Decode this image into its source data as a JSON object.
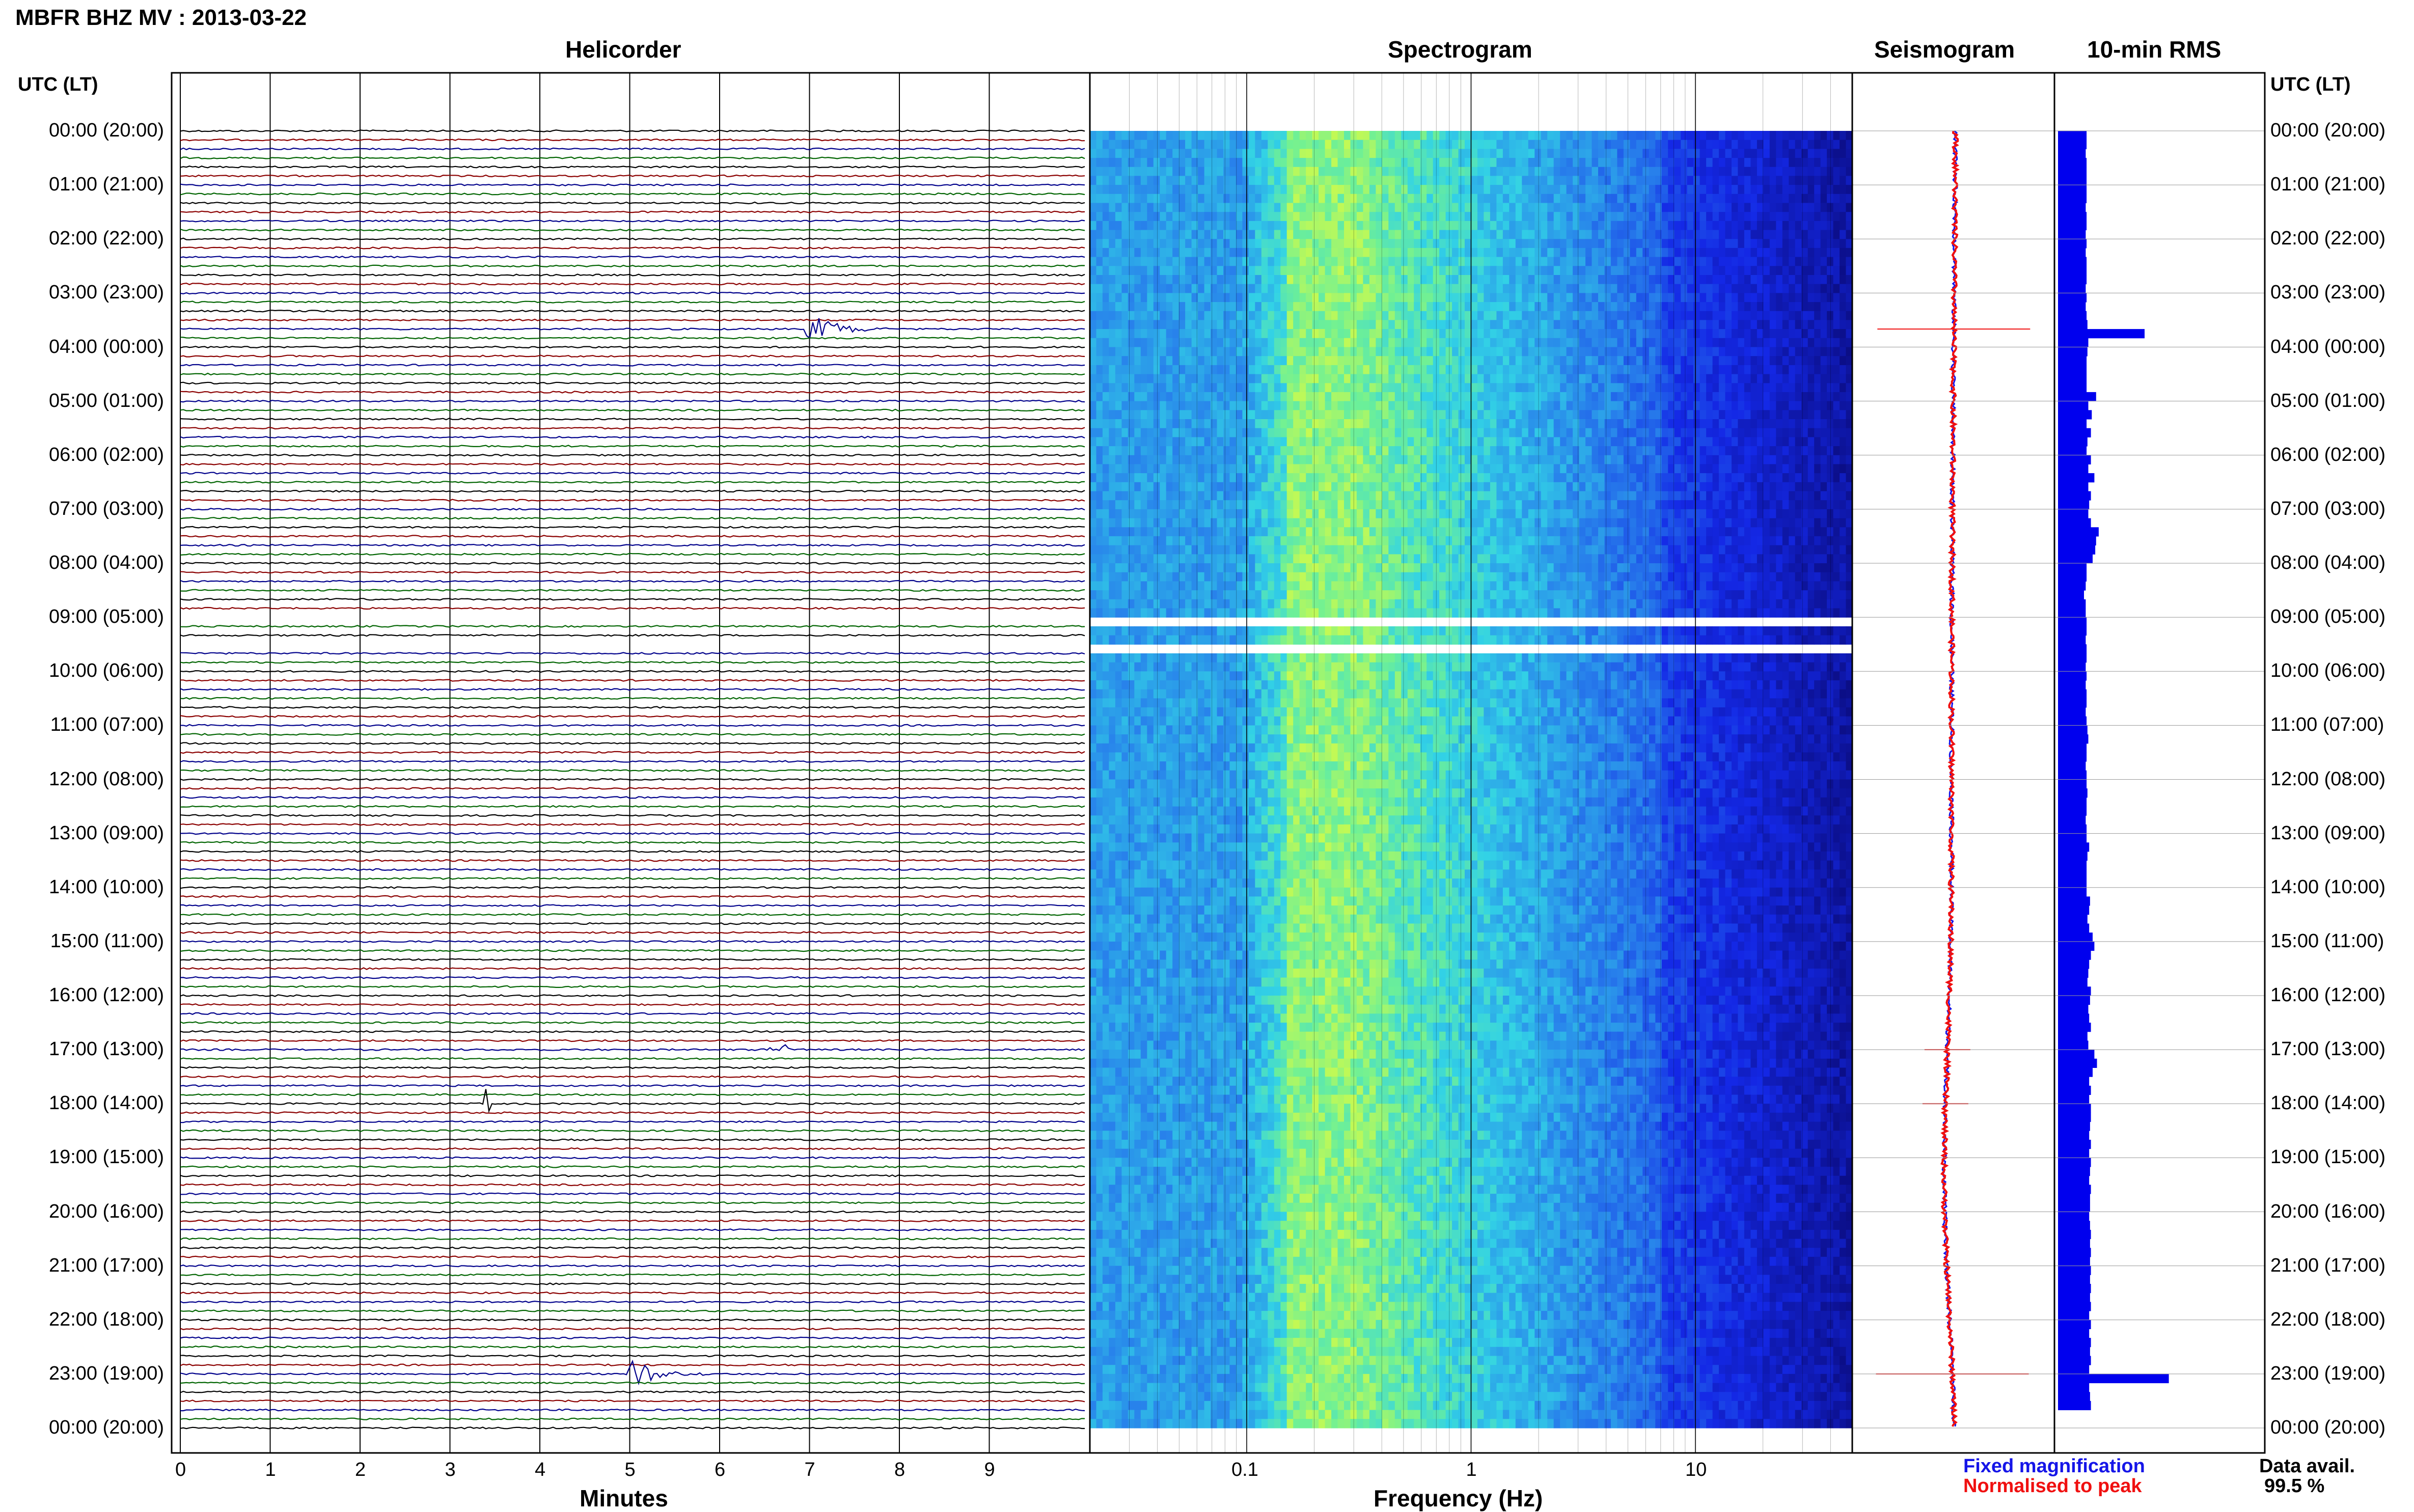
{
  "header": {
    "title": "MBFR BHZ MV : 2013-03-22",
    "panel_titles": [
      "Helicorder",
      "Spectrogram",
      "Seismogram",
      "10-min RMS"
    ],
    "left_axis_title": "UTC (LT)",
    "right_axis_title": "UTC (LT)"
  },
  "footer": {
    "x_title_helicorder": "Minutes",
    "x_title_spectrogram": "Frequency (Hz)",
    "legend": [
      {
        "label": "Fixed magnification",
        "color": "#1515e8"
      },
      {
        "label": "Normalised to peak",
        "color": "#f01010"
      }
    ],
    "data_avail_label": "Data avail.",
    "data_avail_value": "99.5 %"
  },
  "colors": {
    "trace_black": "#000000",
    "trace_red": "#8b0000",
    "trace_blue": "#00008b",
    "trace_green": "#006400",
    "rms_bar": "#0000ee",
    "seis_fixed": "#1515e8",
    "seis_norm": "#f01010"
  },
  "chart_data": [
    {
      "type": "line",
      "name": "helicorder",
      "title": "Helicorder",
      "xlabel": "Minutes",
      "ylabel": "UTC (LT)",
      "xlim": [
        0,
        10
      ],
      "x_ticks": [
        0,
        1,
        2,
        3,
        4,
        5,
        6,
        7,
        8,
        9
      ],
      "hour_labels": [
        "00:00 (20:00)",
        "01:00 (21:00)",
        "02:00 (22:00)",
        "03:00 (23:00)",
        "04:00 (00:00)",
        "05:00 (01:00)",
        "06:00 (02:00)",
        "07:00 (03:00)",
        "08:00 (04:00)",
        "09:00 (05:00)",
        "10:00 (06:00)",
        "11:00 (07:00)",
        "12:00 (08:00)",
        "13:00 (09:00)",
        "14:00 (10:00)",
        "15:00 (11:00)",
        "16:00 (12:00)",
        "17:00 (13:00)",
        "18:00 (14:00)",
        "19:00 (15:00)",
        "20:00 (16:00)",
        "21:00 (17:00)",
        "22:00 (18:00)",
        "23:00 (19:00)",
        "00:00 (20:00)"
      ],
      "traces_per_hour": 6,
      "trace_color_cycle": [
        "black",
        "red",
        "blue",
        "green"
      ],
      "events": [
        {
          "time": "03:40",
          "minute": 7.0,
          "amplitude": "large"
        },
        {
          "time": "17:00",
          "minute": 6.6,
          "amplitude": "small"
        },
        {
          "time": "18:00",
          "minute": 3.4,
          "amplitude": "spike"
        },
        {
          "time": "23:00",
          "minute": 5.0,
          "amplitude": "large"
        }
      ],
      "gaps": [
        "09:00",
        "09:30"
      ]
    },
    {
      "type": "heatmap",
      "name": "spectrogram",
      "title": "Spectrogram",
      "xlabel": "Frequency (Hz)",
      "xscale": "log",
      "xlim": [
        0.02,
        50
      ],
      "x_tick_labels": [
        "0.1",
        "1",
        "10"
      ],
      "peak_band_hz": [
        0.15,
        0.3
      ]
    },
    {
      "type": "line",
      "name": "seismogram",
      "title": "Seismogram",
      "series": [
        {
          "name": "Fixed magnification",
          "color": "#1515e8"
        },
        {
          "name": "Normalised to peak",
          "color": "#f01010"
        }
      ]
    },
    {
      "type": "bar",
      "name": "rms",
      "title": "10-min RMS",
      "orientation": "horizontal",
      "rms_relative": [
        0.33,
        0.33,
        0.32,
        0.33,
        0.33,
        0.33,
        0.33,
        0.33,
        0.32,
        0.33,
        0.33,
        0.32,
        0.33,
        0.32,
        0.33,
        0.33,
        0.33,
        0.32,
        0.33,
        0.32,
        0.33,
        0.34,
        1.0,
        0.35,
        0.34,
        0.33,
        0.33,
        0.33,
        0.33,
        0.44,
        0.35,
        0.39,
        0.33,
        0.38,
        0.34,
        0.33,
        0.38,
        0.35,
        0.42,
        0.35,
        0.38,
        0.36,
        0.35,
        0.38,
        0.47,
        0.44,
        0.43,
        0.4,
        0.33,
        0.33,
        0.32,
        0.3,
        0.32,
        0.32,
        0.33,
        0.33,
        0.32,
        0.33,
        0.33,
        0.32,
        0.33,
        0.32,
        0.33,
        0.33,
        0.32,
        0.33,
        0.34,
        0.35,
        0.33,
        0.33,
        0.32,
        0.33,
        0.33,
        0.34,
        0.33,
        0.33,
        0.32,
        0.33,
        0.33,
        0.36,
        0.34,
        0.33,
        0.33,
        0.33,
        0.33,
        0.37,
        0.36,
        0.34,
        0.36,
        0.4,
        0.42,
        0.38,
        0.36,
        0.35,
        0.34,
        0.38,
        0.37,
        0.35,
        0.36,
        0.38,
        0.34,
        0.35,
        0.42,
        0.45,
        0.4,
        0.36,
        0.38,
        0.36,
        0.38,
        0.38,
        0.37,
        0.36,
        0.38,
        0.36,
        0.38,
        0.37,
        0.36,
        0.38,
        0.37,
        0.37,
        0.36,
        0.37,
        0.38,
        0.37,
        0.38,
        0.37,
        0.38,
        0.37,
        0.38,
        0.37,
        0.38,
        0.36,
        0.38,
        0.36,
        0.38,
        0.37,
        0.38,
        0.36,
        1.28,
        0.36,
        0.37,
        0.38
      ]
    }
  ]
}
